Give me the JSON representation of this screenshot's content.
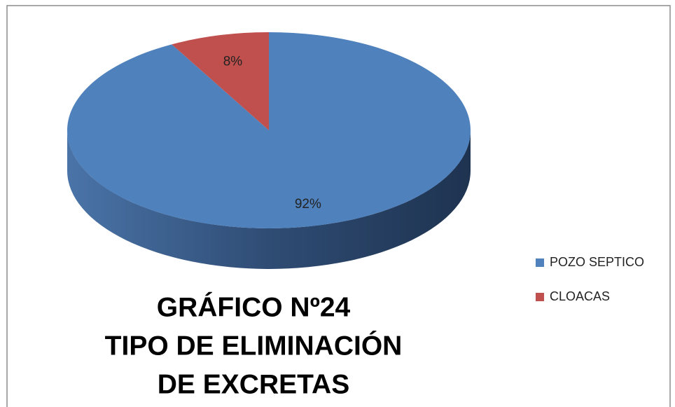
{
  "chart_data": {
    "type": "pie",
    "title": [
      "GRÁFICO Nº24",
      "TIPO DE ELIMINACIÓN",
      "DE EXCRETAS"
    ],
    "categories": [
      "POZO SEPTICO",
      "CLOACAS"
    ],
    "values": [
      92,
      8
    ],
    "value_labels": [
      "92%",
      "8%"
    ],
    "colors": [
      "#4f81bd",
      "#c0504d"
    ],
    "legend": "right"
  }
}
